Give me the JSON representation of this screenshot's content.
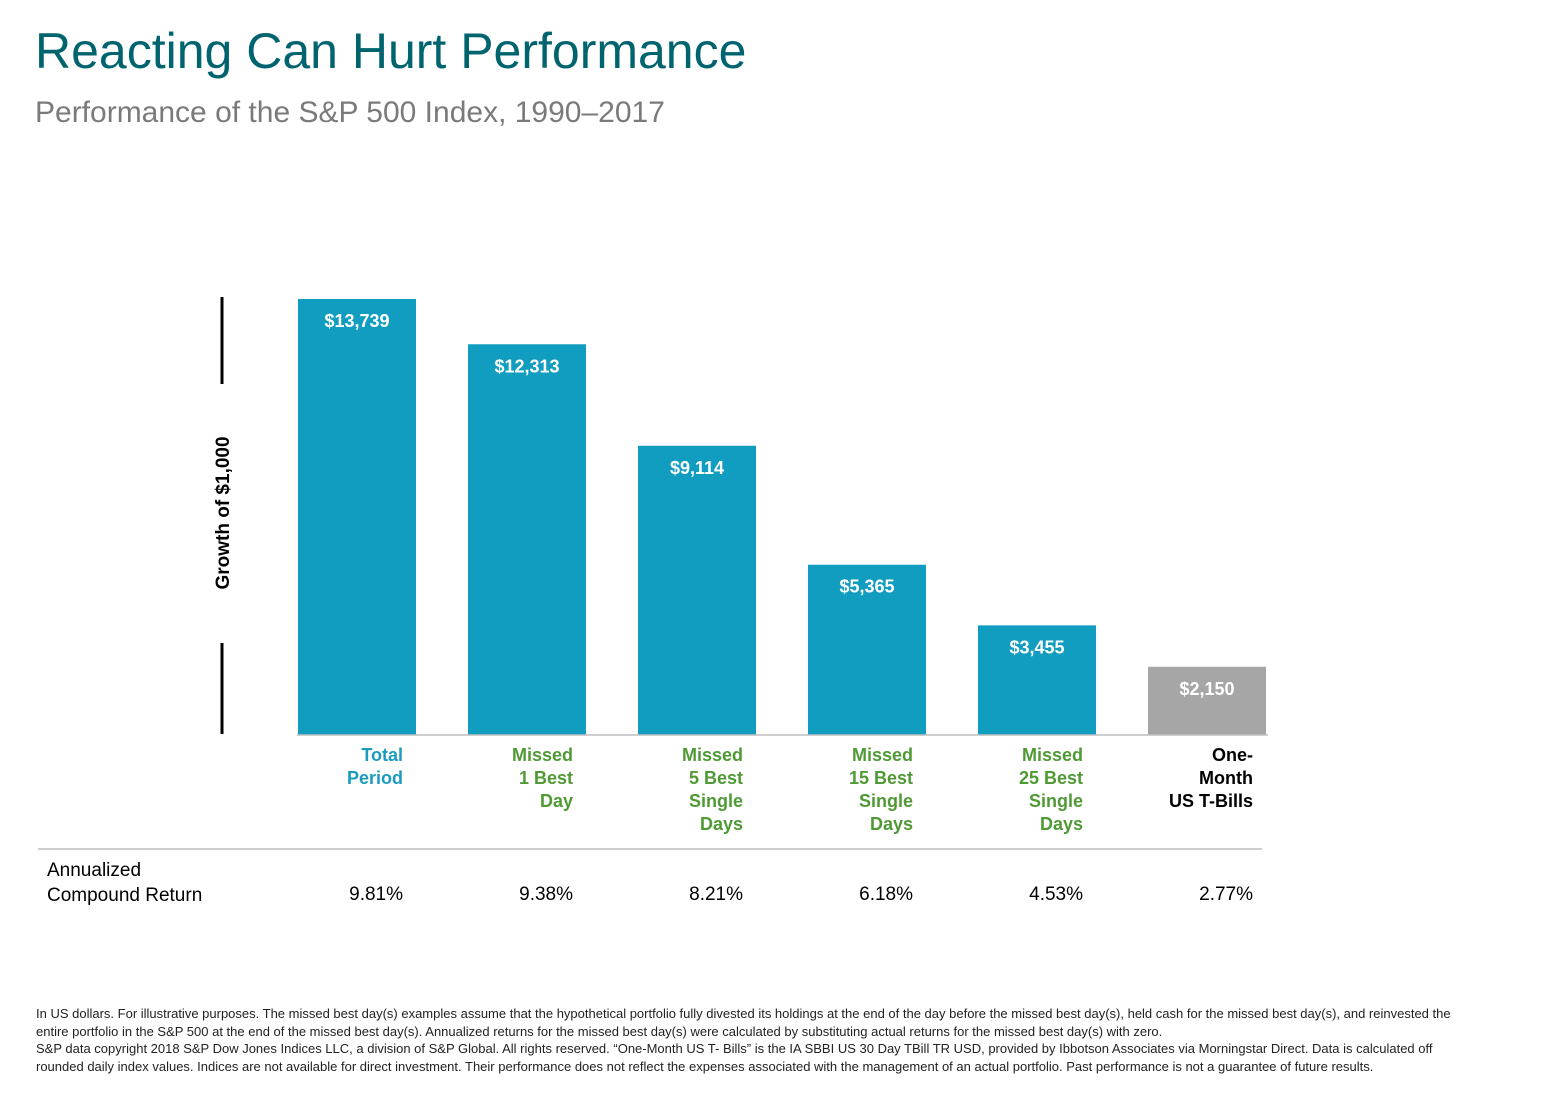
{
  "header": {
    "title": "Reacting Can Hurt Performance",
    "subtitle": "Performance of the S&P 500 Index, 1990–2017"
  },
  "chart_data": {
    "type": "bar",
    "ylabel": "Growth of $1,000",
    "xlabel": "",
    "ylim": [
      0,
      14000
    ],
    "categories": [
      {
        "lines": [
          "Total",
          "Period"
        ],
        "color": "#1a9bbf"
      },
      {
        "lines": [
          "Missed",
          "1 Best",
          "Day"
        ],
        "color": "#4f9a35"
      },
      {
        "lines": [
          "Missed",
          "5 Best",
          "Single",
          "Days"
        ],
        "color": "#4f9a35"
      },
      {
        "lines": [
          "Missed",
          "15 Best",
          "Single",
          "Days"
        ],
        "color": "#4f9a35"
      },
      {
        "lines": [
          "Missed",
          "25 Best",
          "Single",
          "Days"
        ],
        "color": "#4f9a35"
      },
      {
        "lines": [
          "One-",
          "Month",
          "US T-Bills"
        ],
        "color": "#000000"
      }
    ],
    "values": [
      13739,
      12313,
      9114,
      5365,
      3455,
      2150
    ],
    "value_labels": [
      "$13,739",
      "$12,313",
      "$9,114",
      "$5,365",
      "$3,455",
      "$2,150"
    ],
    "bar_colors": [
      "#119dc0",
      "#119dc0",
      "#119dc0",
      "#119dc0",
      "#119dc0",
      "#a6a6a6"
    ]
  },
  "returns": {
    "header_lines": [
      "Annualized",
      "Compound Return"
    ],
    "values": [
      "9.81%",
      "9.38%",
      "8.21%",
      "6.18%",
      "4.53%",
      "2.77%"
    ]
  },
  "footnote": {
    "p1": "In US dollars. For illustrative purposes. The missed best day(s) examples assume that the hypothetical portfolio fully divested its holdings at the end of the day before the missed best day(s), held cash for the missed best day(s), and reinvested the entire portfolio in the S&P 500 at the end of the missed best day(s). Annualized returns for the missed best day(s) were calculated by substituting actual returns for the missed best day(s) with zero.",
    "p2": "S&P data copyright 2018 S&P Dow Jones Indices LLC, a division of S&P Global. All rights reserved. “One-Month US T- Bills” is the IA SBBI US 30 Day TBill TR USD, provided by Ibbotson Associates via Morningstar Direct. Data is calculated off rounded daily index values. Indices are not available for direct investment. Their performance does not reflect the expenses associated with the management of an actual portfolio. Past performance is not a guarantee of future results."
  }
}
